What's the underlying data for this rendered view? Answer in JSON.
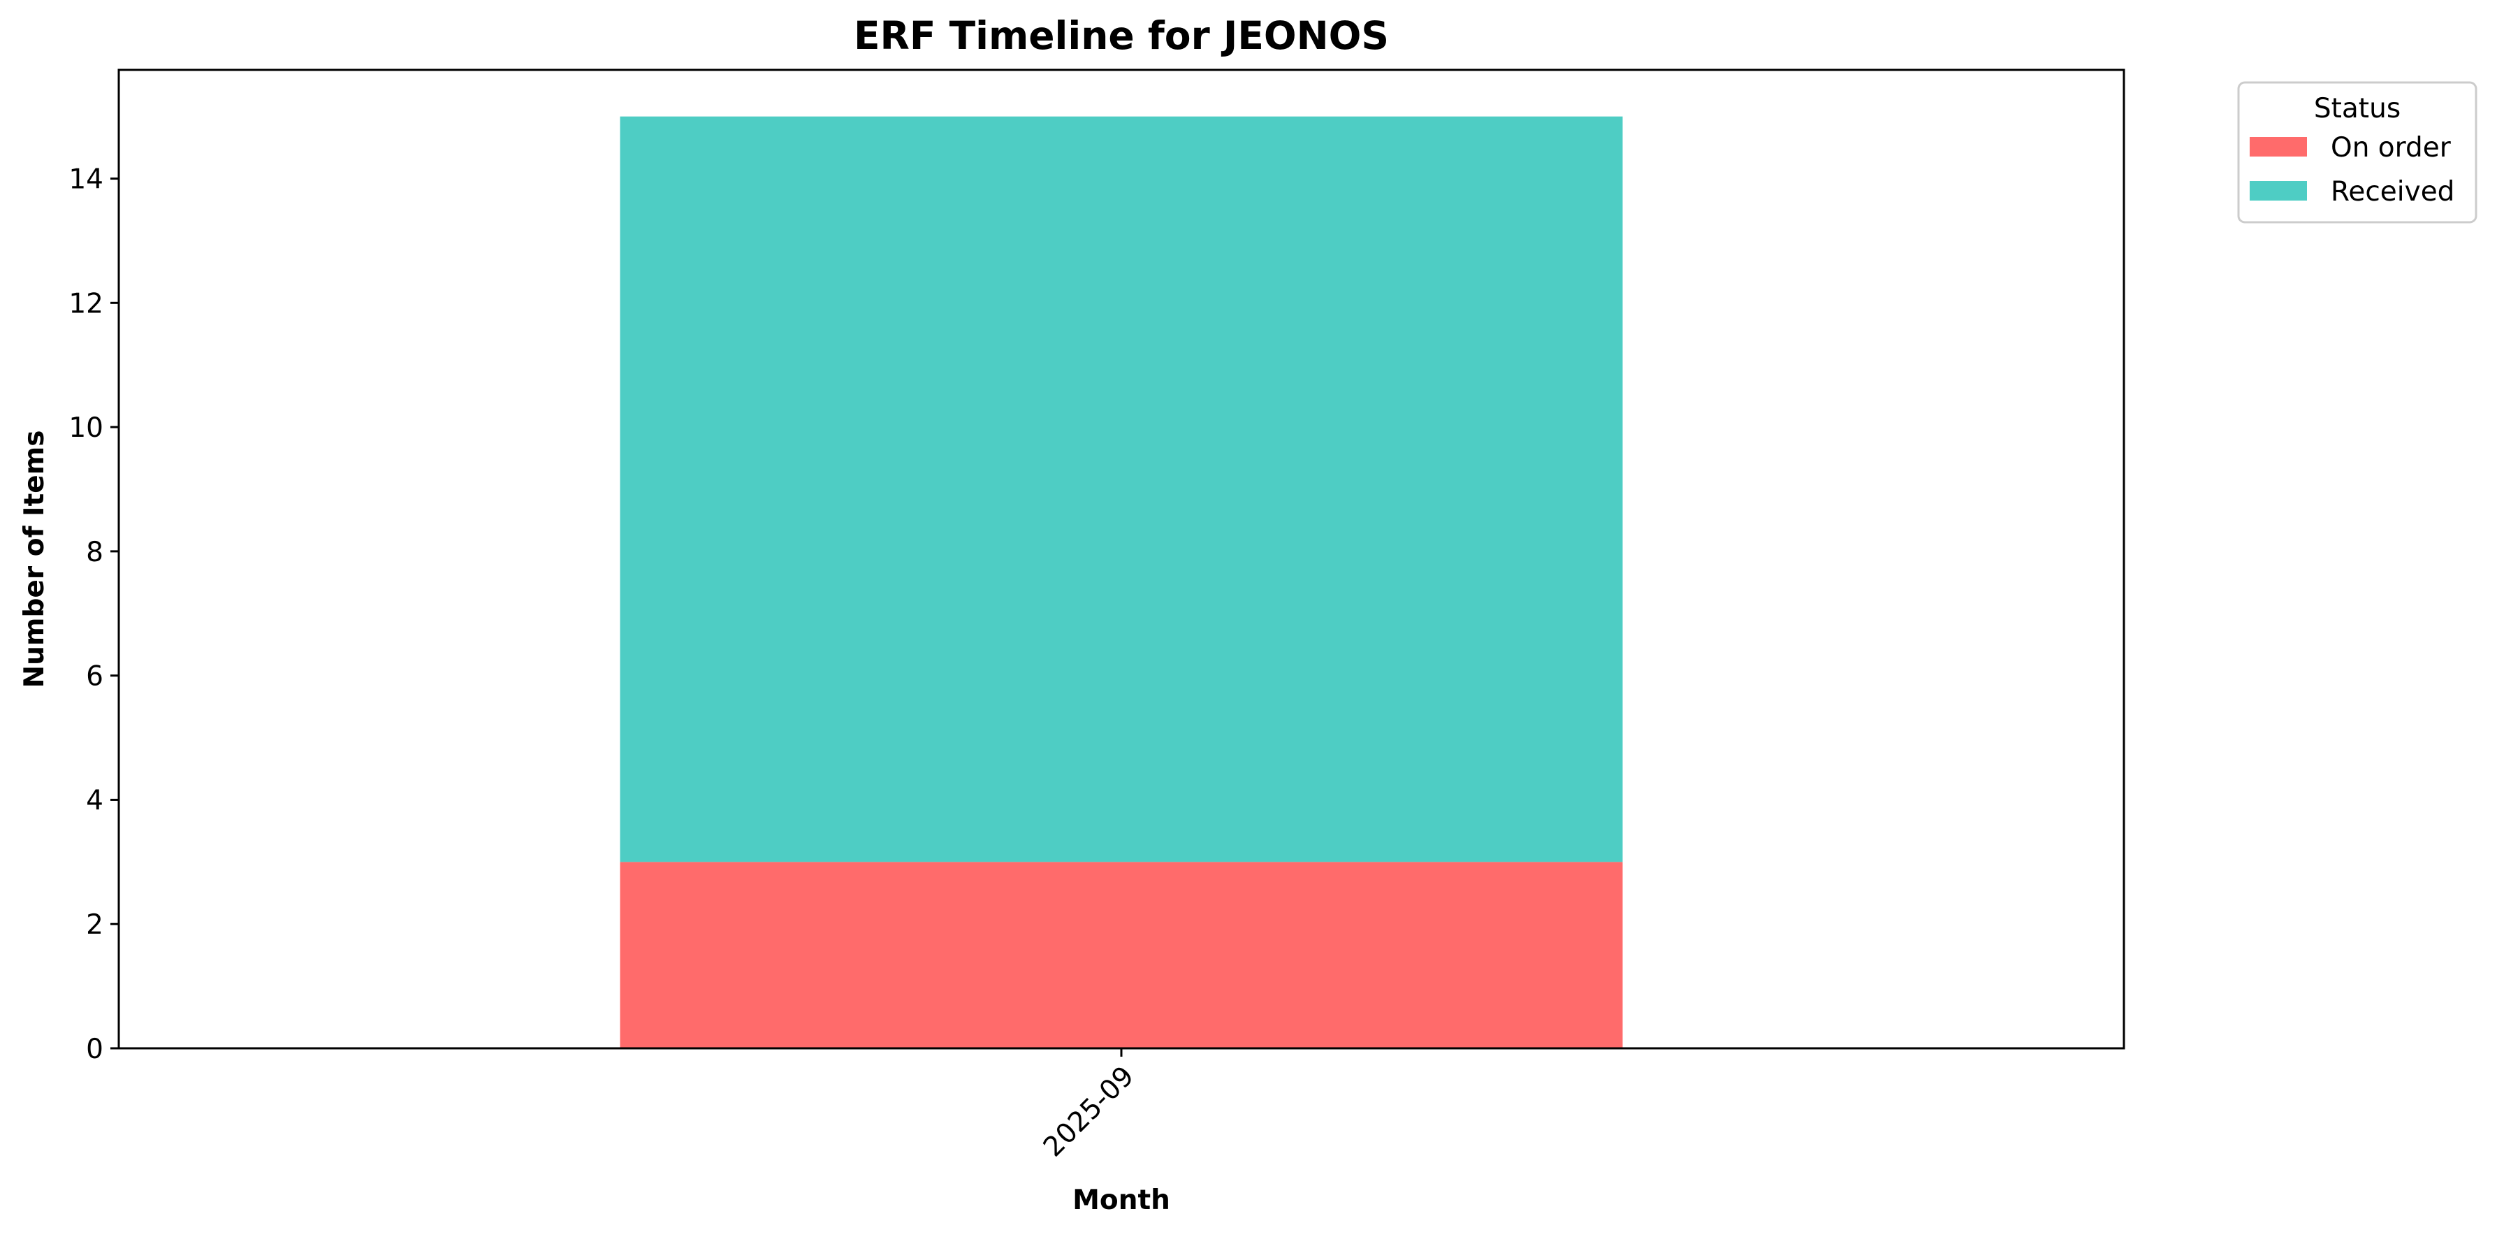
{
  "chart_data": {
    "type": "bar",
    "stacked": true,
    "title": "ERF Timeline for JEONOS",
    "xlabel": "Month",
    "ylabel": "Number of Items",
    "categories": [
      "2025-09"
    ],
    "series": [
      {
        "name": "On order",
        "values": [
          3
        ],
        "color": "#ff6b6b"
      },
      {
        "name": "Received",
        "values": [
          12
        ],
        "color": "#4ecdc4"
      }
    ],
    "ylim": [
      0,
      15.75
    ],
    "yticks": [
      0,
      2,
      4,
      6,
      8,
      10,
      12,
      14
    ],
    "grid": false,
    "legend": {
      "title": "Status",
      "placement": "outside-top-right"
    }
  }
}
